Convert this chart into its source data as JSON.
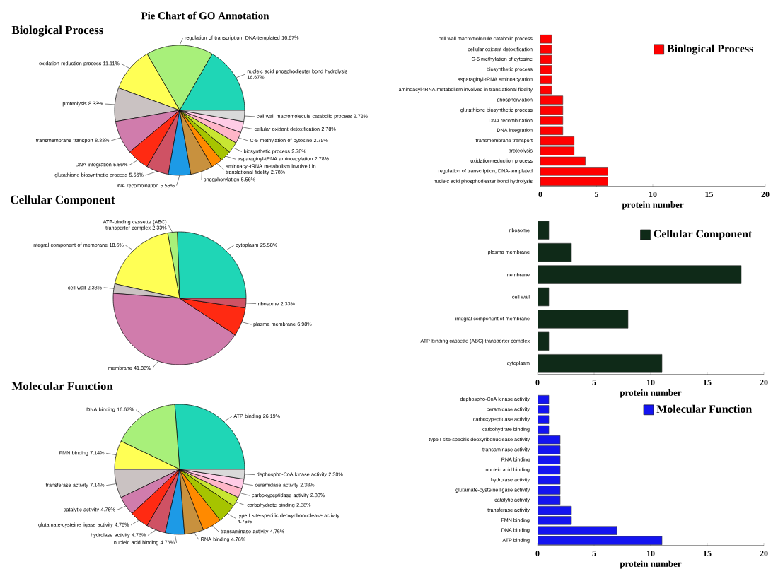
{
  "chart_data": [
    {
      "type": "pie",
      "title": "Pie Chart of GO Annotation",
      "subtitle": "Biological Process",
      "categories": [
        "nucleic acid phosphodiester bond hydrolysis",
        "regulation of transcription, DNA-templated",
        "oxidation-reduction process",
        "proteolysis",
        "transmembrane transport",
        "DNA integration",
        "glutathione biosynthetic process",
        "DNA recombination",
        "phosphorylation",
        "aminoacyl-tRNA metabolism involved in translational fidelity",
        "asparaginyl-tRNA aminoacylation",
        "biosynthetic process",
        "C-5 methylation of cytosine",
        "cellular oxidant detoxification",
        "cell wall macromolecule catabolic process"
      ],
      "values": [
        16.67,
        16.67,
        11.11,
        8.33,
        8.33,
        5.56,
        5.56,
        5.56,
        5.56,
        2.78,
        2.78,
        2.78,
        2.78,
        2.78,
        2.78
      ],
      "value_labels": [
        "16.67%",
        "16.67%",
        "11.11%",
        "8.33%",
        "8.33%",
        "5.56%",
        "5.56%",
        "5.56%",
        "5.56%",
        "2.78%",
        "2.78%",
        "2.78%",
        "2.78%",
        "2.78%",
        "2.78%"
      ],
      "colors": [
        "#1fd6b6",
        "#a8f07a",
        "#ffff55",
        "#cac2c2",
        "#d07cac",
        "#ff2a12",
        "#cf5264",
        "#1d9ae6",
        "#c8913e",
        "#ff8a00",
        "#a6c400",
        "#c8e632",
        "#ffb6c8",
        "#ffcce6",
        "#d9d9d9"
      ]
    },
    {
      "type": "bar",
      "orientation": "horizontal",
      "categories": [
        "cell wall macromolecule catabolic process",
        "cellular oxidant detoxification",
        "C-5 methylation of cytosine",
        "biosynthetic process",
        "asparaginyl-tRNA aminoacylation",
        "aminoacyl-tRNA metabolism involved in translational fidelity",
        "phosphorylation",
        "glutathione biosynthetic process",
        "DNA recombination",
        "DNA integration",
        "transmembrane transport",
        "proteolysis",
        "oxidation-reduction process",
        "regulation of transcription, DNA-templated",
        "nucleic acid phosphodiester bond hydrolysis"
      ],
      "series": [
        {
          "name": "Biological Process",
          "color": "#ff0000",
          "values": [
            1,
            1,
            1,
            1,
            1,
            1,
            2,
            2,
            2,
            2,
            3,
            3,
            4,
            6,
            6
          ]
        }
      ],
      "xlim": [
        0,
        20
      ],
      "xticks": [
        0,
        5,
        10,
        15,
        20
      ],
      "xlabel": "protein number",
      "legend": "top right"
    },
    {
      "type": "pie",
      "title": "Cellular Component",
      "categories": [
        "cytoplasm",
        "ATP-binding cassette (ABC) transporter complex",
        "integral component of membrane",
        "cell wall",
        "membrane",
        "plasma membrane",
        "ribosome"
      ],
      "values": [
        25.58,
        2.33,
        18.6,
        2.33,
        41.86,
        6.98,
        2.33
      ],
      "value_labels": [
        "25.58%",
        "2.33%",
        "18.6%",
        "2.33%",
        "41.86%",
        "6.98%",
        "2.33%"
      ],
      "colors": [
        "#1fd6b6",
        "#a8f07a",
        "#ffff55",
        "#cac2c2",
        "#d07cac",
        "#ff2a12",
        "#cf5264"
      ]
    },
    {
      "type": "bar",
      "orientation": "horizontal",
      "categories": [
        "ribosome",
        "plasma membrane",
        "membrane",
        "cell wall",
        "integral component of membrane",
        "ATP-binding cassette (ABC) transporter complex",
        "cytoplasm"
      ],
      "series": [
        {
          "name": "Cellular Component",
          "color": "#0f2a18",
          "values": [
            1,
            3,
            18,
            1,
            8,
            1,
            11
          ]
        }
      ],
      "xlim": [
        0,
        20
      ],
      "xticks": [
        0,
        5,
        10,
        15,
        20
      ],
      "xlabel": "protein number",
      "legend": "top right"
    },
    {
      "type": "pie",
      "title": "Molecular Function",
      "categories": [
        "ATP binding",
        "DNA binding",
        "FMN binding",
        "transferase activity",
        "catalytic activity",
        "glutamate-cysteine ligase activity",
        "hydrolase activity",
        "nucleic acid binding",
        "RNA binding",
        "transaminase activity",
        "type I site-specific deoxyribonuclease activity",
        "carbohydrate binding",
        "carboxypeptidase activity",
        "ceramidase activity",
        "dephospho-CoA kinase activity"
      ],
      "values": [
        26.19,
        16.67,
        7.14,
        7.14,
        4.76,
        4.76,
        4.76,
        4.76,
        4.76,
        4.76,
        4.76,
        2.38,
        2.38,
        2.38,
        2.38
      ],
      "value_labels": [
        "26.19%",
        "16.67%",
        "7.14%",
        "7.14%",
        "4.76%",
        "4.76%",
        "4.76%",
        "4.76%",
        "4.76%",
        "4.76%",
        "4.76%",
        "2.38%",
        "2.38%",
        "2.38%",
        "2.38%"
      ],
      "colors": [
        "#1fd6b6",
        "#a8f07a",
        "#ffff55",
        "#cac2c2",
        "#d07cac",
        "#ff2a12",
        "#cf5264",
        "#1d9ae6",
        "#c8913e",
        "#ff8a00",
        "#a6c400",
        "#c8e632",
        "#ffb6c8",
        "#ffcce6",
        "#d9d9d9"
      ]
    },
    {
      "type": "bar",
      "orientation": "horizontal",
      "categories": [
        "dephospho-CoA kinase activity",
        "ceramidase activity",
        "carboxypeptidase activity",
        "carbohydrate binding",
        "type I site-specific deoxyribonuclease activity",
        "transaminase activity",
        "RNA binding",
        "nucleic acid binding",
        "hydrolase activity",
        "glutamate-cysteine ligase activity",
        "catalytic activity",
        "transferase activity",
        "FMN binding",
        "DNA binding",
        "ATP binding"
      ],
      "series": [
        {
          "name": "Molecular Function",
          "color": "#1414f0",
          "values": [
            1,
            1,
            1,
            1,
            2,
            2,
            2,
            2,
            2,
            2,
            2,
            3,
            3,
            7,
            11
          ]
        }
      ],
      "xlim": [
        0,
        20
      ],
      "xticks": [
        0,
        5,
        10,
        15,
        20
      ],
      "xlabel": "protein number",
      "legend": "top right"
    }
  ]
}
